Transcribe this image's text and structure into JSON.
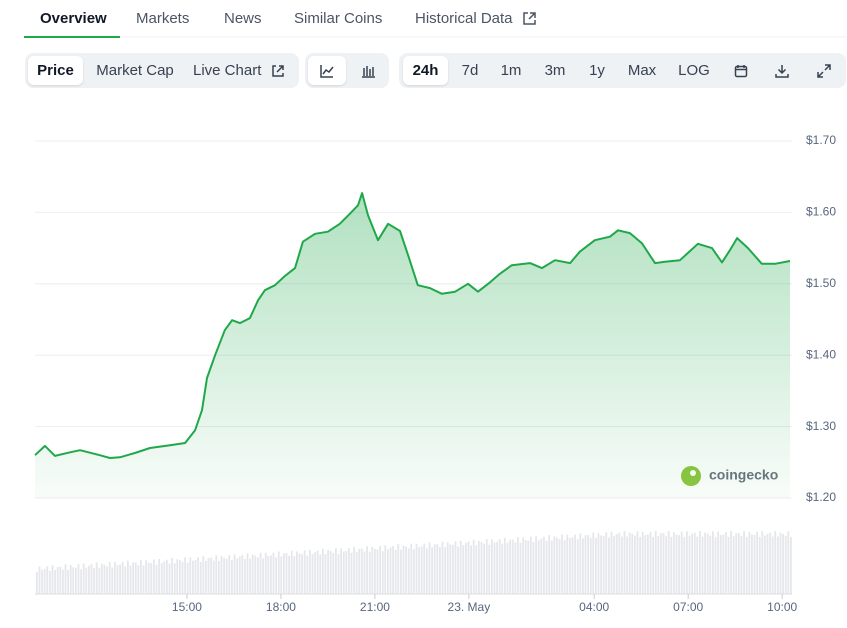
{
  "tabs": [
    "Overview",
    "Markets",
    "News",
    "Similar Coins",
    "Historical Data"
  ],
  "chart_types": [
    "Price",
    "Market Cap",
    "Live Chart"
  ],
  "ranges": [
    "24h",
    "7d",
    "1m",
    "3m",
    "1y",
    "Max",
    "LOG"
  ],
  "watermark": "coingecko",
  "chart_data": {
    "type": "area",
    "color": "#1fa84a",
    "x": [
      10.15,
      10.47,
      10.79,
      11.27,
      11.59,
      12.22,
      12.54,
      12.86,
      13.34,
      13.82,
      14.46,
      14.94,
      15.26,
      15.48,
      15.64,
      15.9,
      16.21,
      16.44,
      16.69,
      17.01,
      17.27,
      17.49,
      17.81,
      18.13,
      18.45,
      18.7,
      19.09,
      19.5,
      19.88,
      20.2,
      20.46,
      20.59,
      20.78,
      21.1,
      21.42,
      21.8,
      22.06,
      22.37,
      22.76,
      23.14,
      23.56,
      23.97,
      24.29,
      24.67,
      24.99,
      25.37,
      25.95,
      26.33,
      26.75,
      27.23,
      27.54,
      28.02,
      28.5,
      28.76,
      29.14,
      29.52,
      29.94,
      30.26,
      30.74,
      31.31,
      31.76,
      32.08,
      32.33,
      32.56,
      32.91,
      33.35,
      33.77,
      34.25
    ],
    "values": [
      1.26,
      1.273,
      1.259,
      1.264,
      1.267,
      1.26,
      1.256,
      1.257,
      1.263,
      1.27,
      1.274,
      1.277,
      1.295,
      1.323,
      1.368,
      1.4,
      1.435,
      1.449,
      1.445,
      1.452,
      1.477,
      1.491,
      1.498,
      1.511,
      1.522,
      1.559,
      1.57,
      1.573,
      1.584,
      1.598,
      1.61,
      1.627,
      1.596,
      1.561,
      1.584,
      1.574,
      1.54,
      1.498,
      1.494,
      1.486,
      1.489,
      1.5,
      1.489,
      1.502,
      1.514,
      1.526,
      1.529,
      1.522,
      1.533,
      1.529,
      1.545,
      1.561,
      1.566,
      1.575,
      1.571,
      1.557,
      1.529,
      1.531,
      1.533,
      1.556,
      1.55,
      1.53,
      1.547,
      1.564,
      1.55,
      1.528,
      1.528,
      1.532
    ],
    "xlim": [
      10.15,
      34.25
    ],
    "xticks": [
      {
        "value": 15,
        "label": "15:00"
      },
      {
        "value": 18,
        "label": "18:00"
      },
      {
        "value": 21,
        "label": "21:00"
      },
      {
        "value": 24,
        "label": "23. May"
      },
      {
        "value": 28,
        "label": "04:00"
      },
      {
        "value": 31,
        "label": "07:00"
      },
      {
        "value": 34,
        "label": "10:00"
      }
    ],
    "ylim": [
      1.2,
      1.7
    ],
    "yticks": [
      {
        "value": 1.2,
        "label": "$1.20"
      },
      {
        "value": 1.3,
        "label": "$1.30"
      },
      {
        "value": 1.4,
        "label": "$1.40"
      },
      {
        "value": 1.5,
        "label": "$1.50"
      },
      {
        "value": 1.6,
        "label": "$1.60"
      },
      {
        "value": 1.7,
        "label": "$1.70"
      }
    ],
    "grid": true
  }
}
